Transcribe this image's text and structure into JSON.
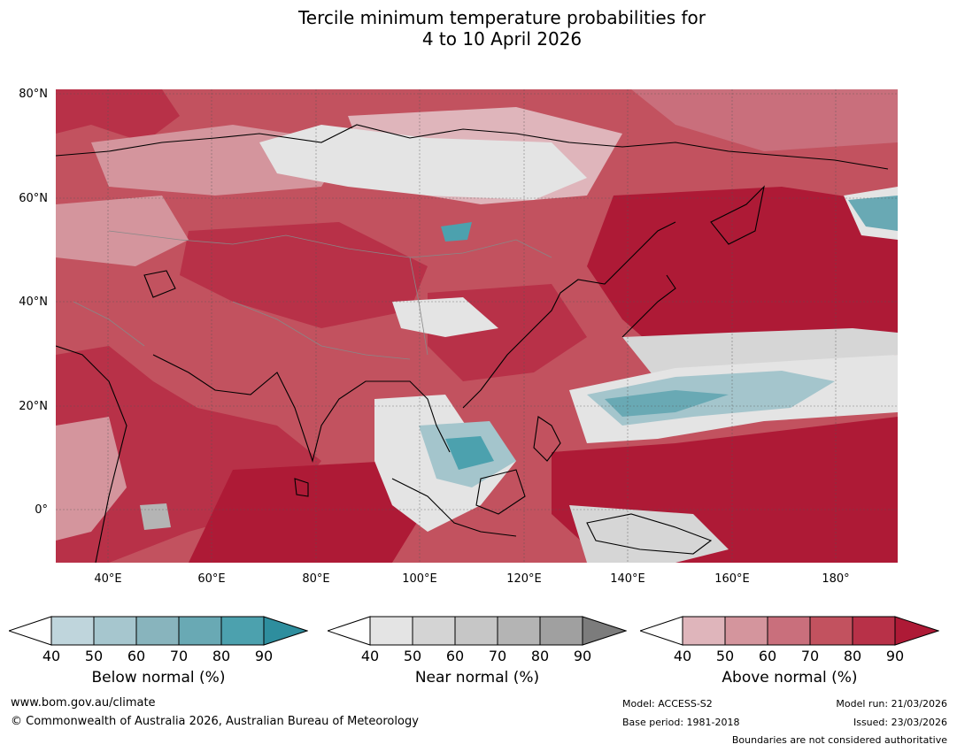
{
  "title": {
    "line1": "Tercile minimum temperature probabilities for",
    "line2": "4 to 10 April 2026"
  },
  "map": {
    "region": "Asia / Western Pacific",
    "lat_labels": [
      "80°N",
      "60°N",
      "40°N",
      "20°N",
      "0°"
    ],
    "lon_labels": [
      "40°E",
      "60°E",
      "80°E",
      "100°E",
      "120°E",
      "140°E",
      "160°E",
      "180°"
    ],
    "colors": {
      "above": [
        "#dfb5bb",
        "#d4959d",
        "#c96f7c",
        "#c2525f",
        "#b83148",
        "#ae1a36"
      ],
      "near": [
        "#e4e4e4",
        "#d6d6d6",
        "#c8c8c8",
        "#b4b4b4",
        "#a0a0a0",
        "#7c7c7c"
      ],
      "below": [
        "#bfd5dc",
        "#a4c5cc",
        "#88b4bd",
        "#69a9b4",
        "#4ca1ae",
        "#2e8e9e"
      ]
    }
  },
  "legends": {
    "below": {
      "title": "Below normal (%)",
      "ticks": [
        "40",
        "50",
        "60",
        "70",
        "80",
        "90"
      ],
      "colors": [
        "#bfd5dc",
        "#a6c6ce",
        "#88b4bd",
        "#69a9b4",
        "#4ca1ae",
        "#2e8e9e"
      ]
    },
    "near": {
      "title": "Near normal (%)",
      "ticks": [
        "40",
        "50",
        "60",
        "70",
        "80",
        "90"
      ],
      "colors": [
        "#e4e4e4",
        "#d4d4d4",
        "#c6c6c6",
        "#b4b4b4",
        "#a0a0a0",
        "#7c7c7c"
      ]
    },
    "above": {
      "title": "Above normal (%)",
      "ticks": [
        "40",
        "50",
        "60",
        "70",
        "80",
        "90"
      ],
      "colors": [
        "#dfb5bb",
        "#d4959d",
        "#c96f7c",
        "#c2525f",
        "#b83148",
        "#ae1a36"
      ]
    }
  },
  "footer": {
    "website": "www.bom.gov.au/climate",
    "copyright": "© Commonwealth of Australia 2026, Australian Bureau of Meteorology",
    "model": "Model: ACCESS-S2",
    "base_period": "Base period: 1981-2018",
    "model_run": "Model run: 21/03/2026",
    "issued": "Issued: 23/03/2026",
    "disclaimer": "Boundaries are not considered authoritative"
  }
}
